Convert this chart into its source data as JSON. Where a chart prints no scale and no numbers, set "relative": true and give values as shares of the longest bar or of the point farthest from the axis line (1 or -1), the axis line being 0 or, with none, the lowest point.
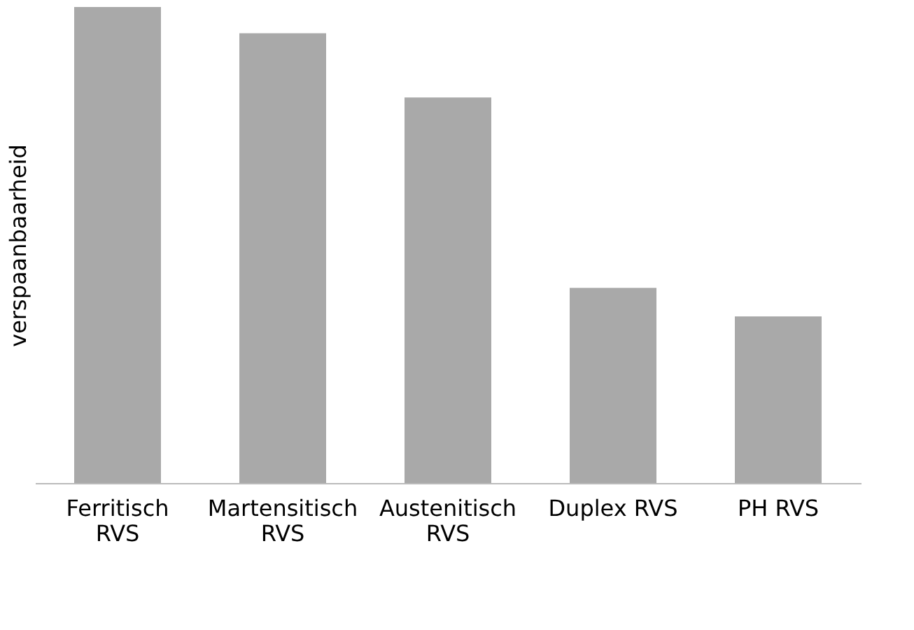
{
  "chart_data": {
    "type": "bar",
    "ylabel": "verspaanbaarheid",
    "relative": true,
    "categories": [
      "Ferritisch RVS",
      "Martensitisch RVS",
      "Austenitisch RVS",
      "Duplex RVS",
      "PH RVS"
    ],
    "values": [
      1,
      0.945,
      0.81,
      0.41,
      0.35
    ],
    "color": "#a9a9a9",
    "grid": false
  }
}
